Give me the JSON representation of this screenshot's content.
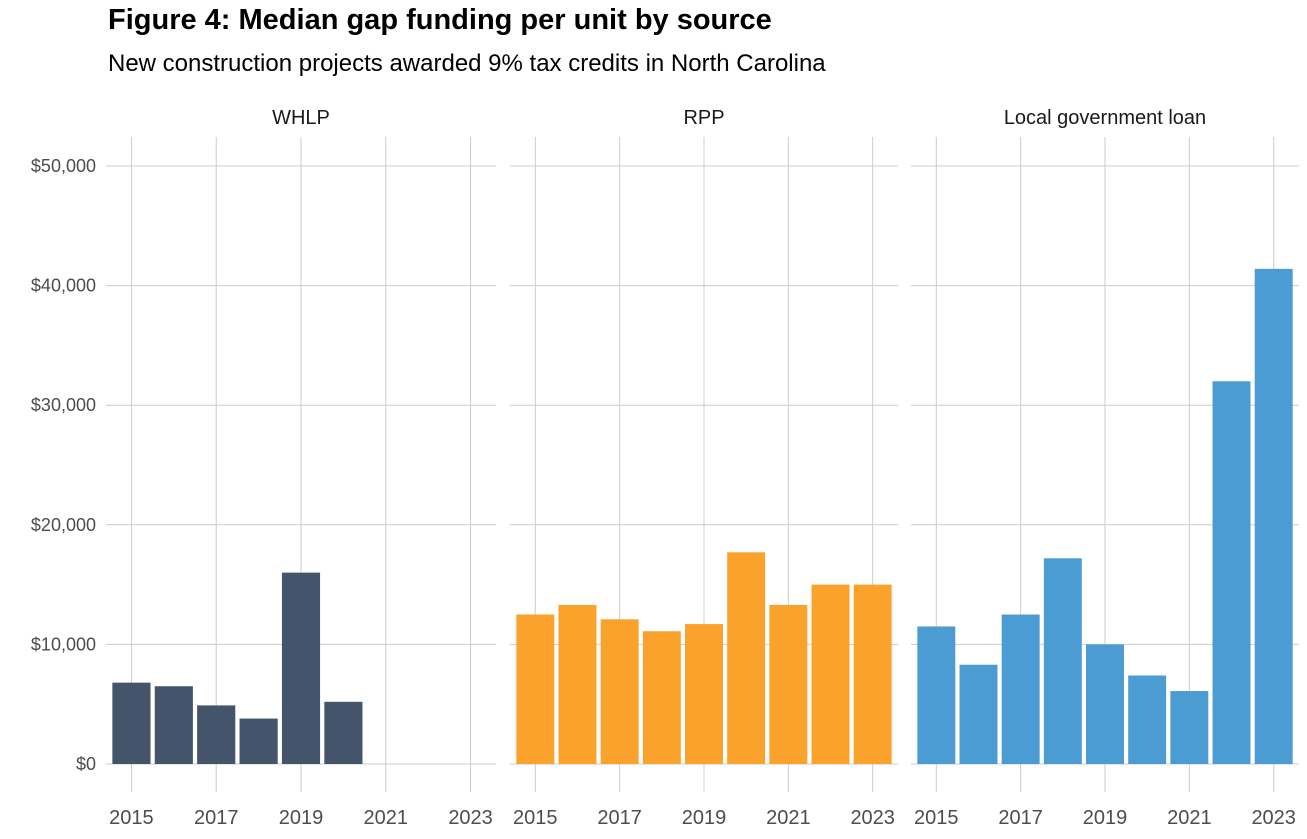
{
  "chart_data": {
    "type": "bar",
    "title": "Figure 4: Median gap funding per unit by source",
    "subtitle": "New construction projects awarded 9% tax credits in North Carolina",
    "xlabel": "",
    "ylabel": "",
    "ylim": [
      0,
      50000
    ],
    "y_ticks": [
      0,
      10000,
      20000,
      30000,
      40000,
      50000
    ],
    "y_tick_labels": [
      "$0",
      "$10,000",
      "$20,000",
      "$30,000",
      "$40,000",
      "$50,000"
    ],
    "x_range": [
      2015,
      2023
    ],
    "x_ticks": [
      2015,
      2017,
      2019,
      2021,
      2023
    ],
    "x_tick_labels": [
      "2015",
      "2017",
      "2019",
      "2021",
      "2023"
    ],
    "grid": true,
    "legend": "none",
    "facets": [
      {
        "name": "WHLP",
        "color": "#44546a",
        "x": [
          2015,
          2016,
          2017,
          2018,
          2019,
          2020
        ],
        "values": [
          6800,
          6500,
          4900,
          3800,
          16000,
          5200
        ]
      },
      {
        "name": "RPP",
        "color": "#fba22c",
        "x": [
          2015,
          2016,
          2017,
          2018,
          2019,
          2020,
          2021,
          2022,
          2023
        ],
        "values": [
          12500,
          13300,
          12100,
          11100,
          11700,
          17700,
          13300,
          15000,
          15000
        ]
      },
      {
        "name": "Local government loan",
        "color": "#4b9cd3",
        "x": [
          2015,
          2016,
          2017,
          2018,
          2019,
          2020,
          2021,
          2022,
          2023
        ],
        "values": [
          11500,
          8300,
          12500,
          17200,
          10000,
          7400,
          6100,
          32000,
          41400
        ]
      }
    ]
  }
}
